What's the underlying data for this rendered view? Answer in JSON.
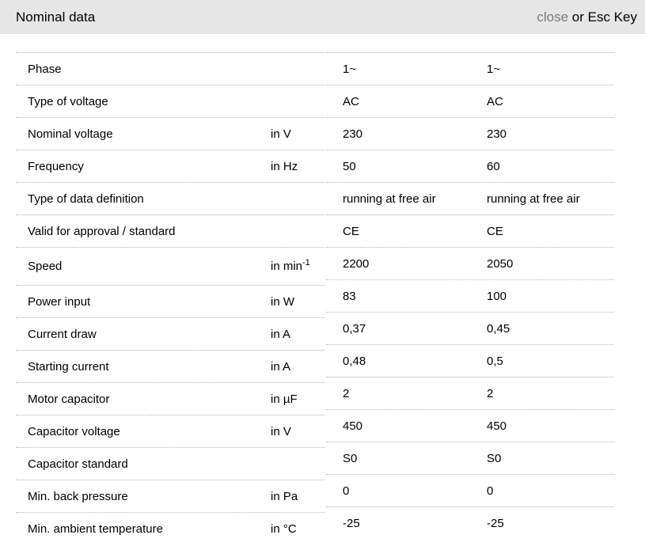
{
  "header": {
    "title": "Nominal data",
    "close_label": "close",
    "close_suffix": " or Esc Key"
  },
  "colors": {
    "header_bg": "#e6e6e6",
    "text": "#000000",
    "close_gray": "#7a7a7a",
    "divider": "#b4b4b4"
  },
  "table": {
    "rows": [
      {
        "label": "Phase",
        "unit": "",
        "value1": "1~",
        "value2": "1~"
      },
      {
        "label": "Type of voltage",
        "unit": "",
        "value1": "AC",
        "value2": "AC"
      },
      {
        "label": "Nominal voltage",
        "unit": "in V",
        "value1": "230",
        "value2": "230"
      },
      {
        "label": "Frequency",
        "unit": "in Hz",
        "value1": "50",
        "value2": "60"
      },
      {
        "label": "Type of data definition",
        "unit": "",
        "value1": "running at free air",
        "value2": "running at free air"
      },
      {
        "label": "Valid for approval / standard",
        "unit": "",
        "value1": "CE",
        "value2": "CE"
      },
      {
        "label": "Speed",
        "unit": "in min",
        "unit_sup": "-1",
        "value1": "2200",
        "value2": "2050"
      },
      {
        "label": "Power input",
        "unit": "in W",
        "value1": "83",
        "value2": "100"
      },
      {
        "label": "Current draw",
        "unit": "in A",
        "value1": "0,37",
        "value2": "0,45"
      },
      {
        "label": "Starting current",
        "unit": "in A",
        "value1": "0,48",
        "value2": "0,5"
      },
      {
        "label": "Motor capacitor",
        "unit": "in µF",
        "value1": "2",
        "value2": "2"
      },
      {
        "label": "Capacitor voltage",
        "unit": "in V",
        "value1": "450",
        "value2": "450"
      },
      {
        "label": "Capacitor standard",
        "unit": "",
        "value1": "S0",
        "value2": "S0"
      },
      {
        "label": "Min. back pressure",
        "unit": "in Pa",
        "value1": "0",
        "value2": "0"
      },
      {
        "label": "Min. ambient temperature",
        "unit": "in °C",
        "value1": "-25",
        "value2": "-25"
      }
    ]
  }
}
